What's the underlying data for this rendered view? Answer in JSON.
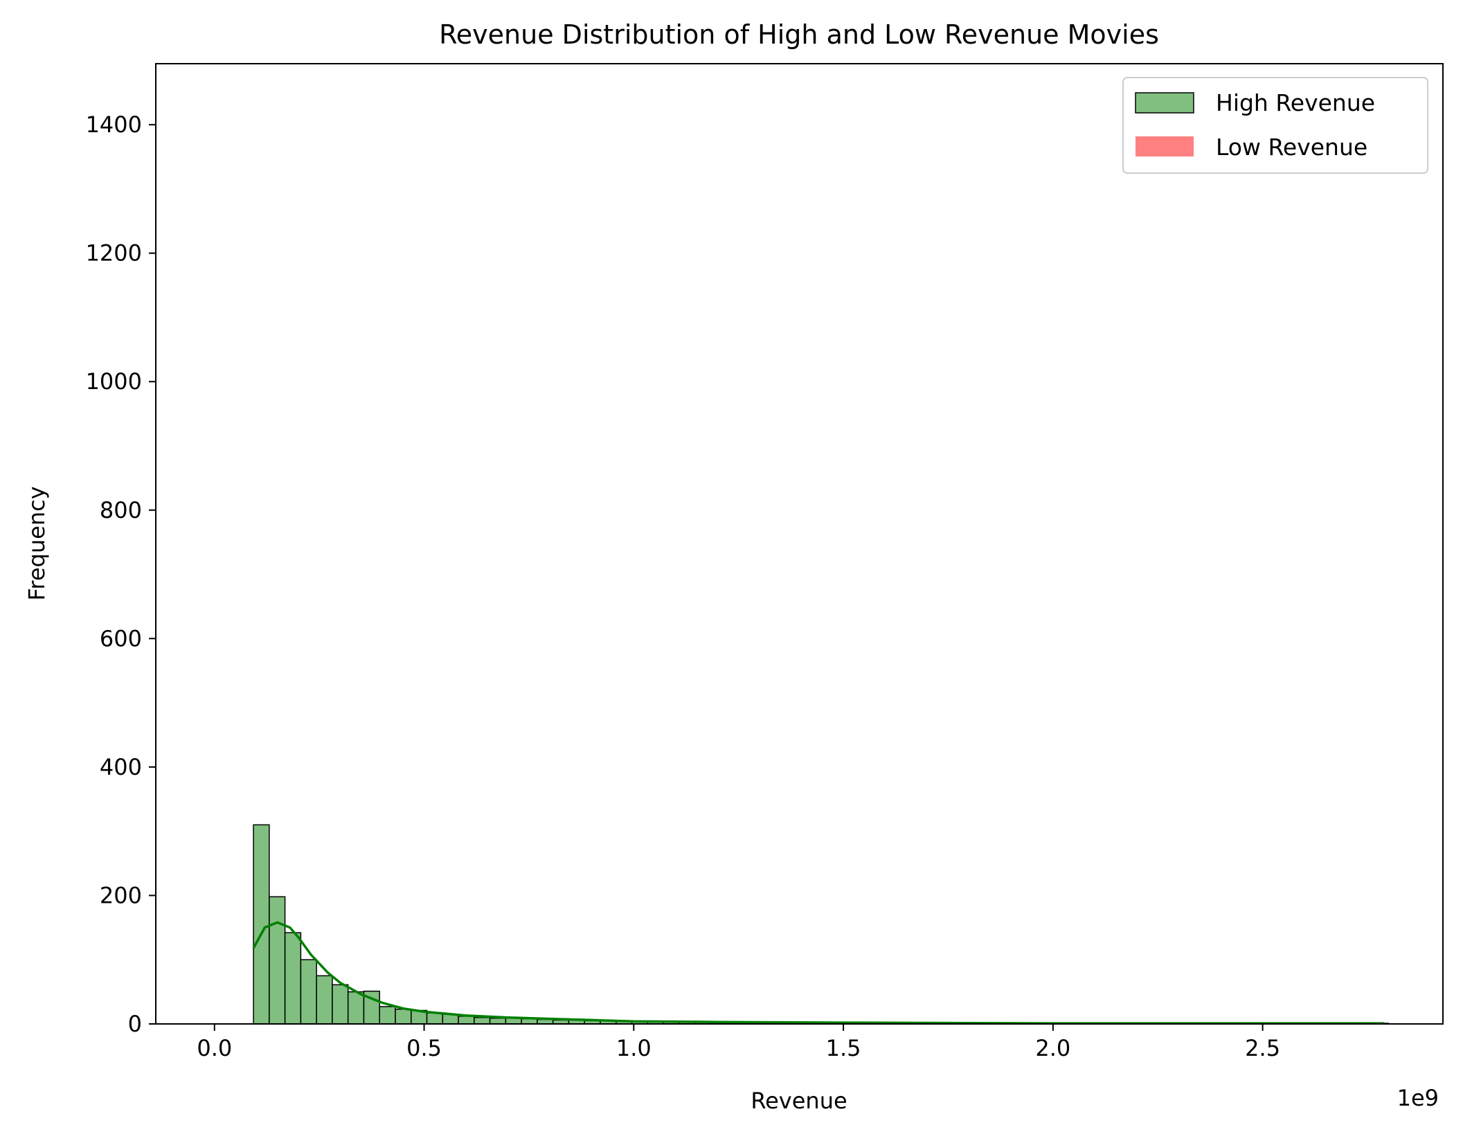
{
  "chart_data": {
    "type": "bar",
    "title": "Revenue Distribution of High and Low Revenue Movies",
    "xlabel": "Revenue",
    "ylabel": "Frequency",
    "x_offset_label": "1e9",
    "xlim": [
      -0.14,
      2.93
    ],
    "ylim": [
      0,
      1495
    ],
    "x_ticks": [
      0.0,
      0.5,
      1.0,
      1.5,
      2.0,
      2.5
    ],
    "x_tick_labels": [
      "0.0",
      "0.5",
      "1.0",
      "1.5",
      "2.0",
      "2.5"
    ],
    "y_ticks": [
      0,
      200,
      400,
      600,
      800,
      1000,
      1200,
      1400
    ],
    "y_tick_labels": [
      "0",
      "200",
      "400",
      "600",
      "800",
      "1000",
      "1200",
      "1400"
    ],
    "grid": false,
    "legend_position": "top-right",
    "colors": {
      "high_fill": "#80bf80",
      "high_edge": "#000000",
      "kde_line": "#008000",
      "low_fill": "#ff8080"
    },
    "series": [
      {
        "name": "High Revenue",
        "bin_width": 0.0376,
        "bin_start": 0.093,
        "values": [
          310,
          198,
          142,
          100,
          75,
          61,
          50,
          51,
          27,
          23,
          21,
          17,
          15,
          12,
          10,
          9,
          9,
          8,
          7,
          6,
          6,
          5,
          5,
          5,
          4,
          3,
          3,
          3,
          3,
          2,
          2,
          2,
          2,
          2,
          2,
          1,
          1,
          1,
          1,
          1,
          2,
          1,
          1,
          1,
          1,
          1,
          1,
          1,
          1,
          1,
          1,
          1,
          1,
          1,
          1,
          1,
          1,
          1,
          1,
          1,
          1,
          1,
          1,
          1,
          1,
          1,
          1,
          1,
          1,
          1,
          1,
          1
        ],
        "kde_x": [
          0.093,
          0.12,
          0.15,
          0.18,
          0.2,
          0.23,
          0.27,
          0.3,
          0.35,
          0.4,
          0.45,
          0.5,
          0.6,
          0.7,
          0.8,
          0.9,
          1.0,
          1.2,
          1.5,
          2.0,
          2.5,
          2.79
        ],
        "kde_y": [
          118,
          150,
          158,
          150,
          135,
          108,
          80,
          64,
          46,
          33,
          24,
          19,
          13,
          10,
          8,
          6,
          4,
          3,
          2,
          1,
          1,
          1
        ]
      },
      {
        "name": "Low Revenue",
        "values": []
      }
    ]
  }
}
